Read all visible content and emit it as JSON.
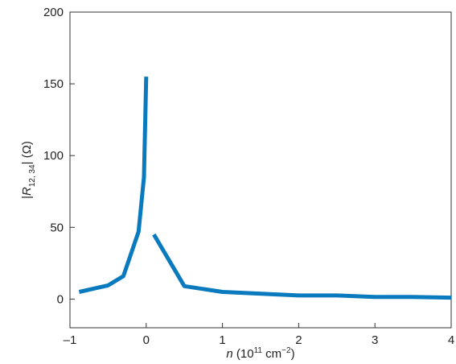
{
  "chart_data": {
    "type": "line",
    "xlabel": "n (10¹¹ cm⁻²)",
    "ylabel": "|R₁₂,₃₄| (Ω)",
    "xlim": [
      -1,
      4
    ],
    "ylim": [
      -20,
      200
    ],
    "xticks": [
      -1,
      0,
      1,
      2,
      3,
      4
    ],
    "xtick_labels": [
      "–1",
      "0",
      "1",
      "2",
      "3",
      "4"
    ],
    "yticks": [
      0,
      50,
      100,
      150,
      200
    ],
    "ytick_labels": [
      "0",
      "50",
      "100",
      "150",
      "200"
    ],
    "grid": false,
    "color": "#0a7abf",
    "series": [
      {
        "x": [
          -0.88,
          -0.5,
          -0.3,
          -0.1,
          -0.03,
          0.0
        ],
        "y": [
          5,
          9.5,
          16,
          47,
          85,
          155
        ]
      },
      {
        "x": [
          0.1,
          0.5,
          1.0,
          2.0,
          2.5,
          3.0,
          3.5,
          4.0
        ],
        "y": [
          45,
          9,
          5,
          2.5,
          2.5,
          1.5,
          1.5,
          1
        ]
      }
    ]
  }
}
